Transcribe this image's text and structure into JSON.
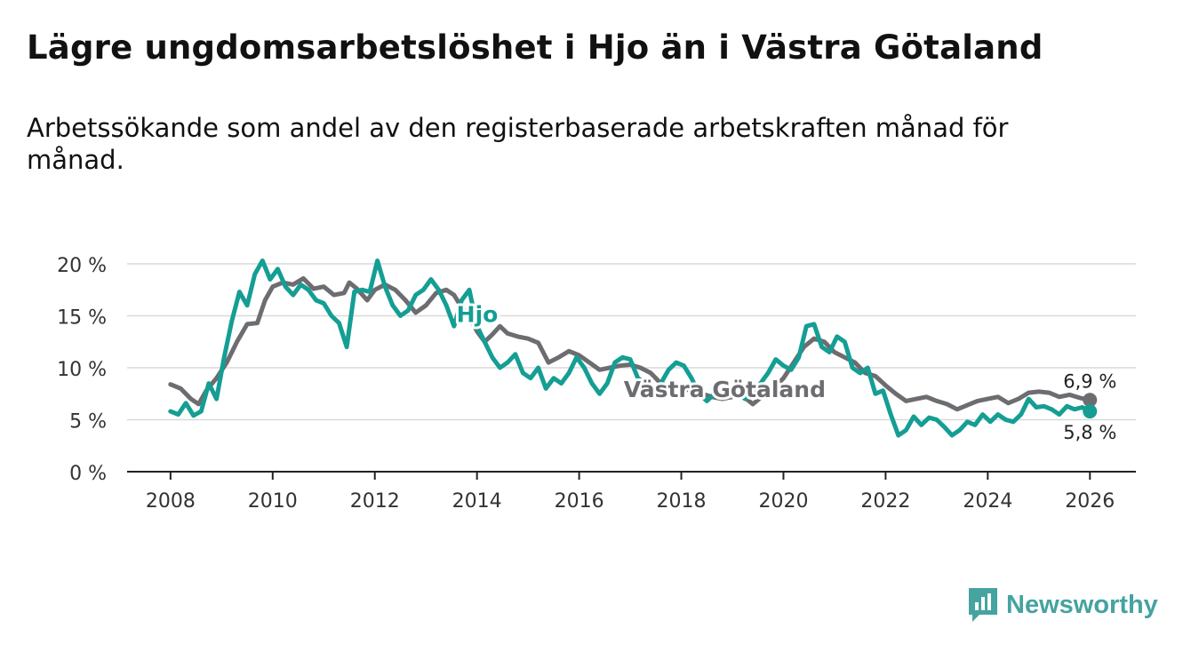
{
  "title": "Lägre ungdomsarbetslöshet i Hjo än i Västra Götaland",
  "subtitle": "Arbetssökande som andel av den registerbaserade arbetskraften månad för månad.",
  "brand": {
    "name": "Newsworthy",
    "color": "#45a3a0"
  },
  "chart_data": {
    "type": "line",
    "x_unit": "year",
    "ylim": [
      0,
      20
    ],
    "y_ticks": [
      0,
      5,
      10,
      15,
      20
    ],
    "y_tick_labels": [
      "0 %",
      "5 %",
      "10 %",
      "15 %",
      "20 %"
    ],
    "x_ticks": [
      2008,
      2010,
      2012,
      2014,
      2016,
      2018,
      2020,
      2022,
      2024,
      2026
    ],
    "x_tick_labels": [
      "2008",
      "2010",
      "2012",
      "2014",
      "2016",
      "2018",
      "2020",
      "2022",
      "2024",
      "2026"
    ],
    "xlim": [
      2007.15,
      2026.9
    ],
    "grid": true,
    "series": [
      {
        "name": "Västra Götaland",
        "label": "Västra Götaland",
        "color": "#6d6c70",
        "end_label": "6,9 %",
        "points": [
          [
            2008.0,
            8.4
          ],
          [
            2008.2,
            8.0
          ],
          [
            2008.4,
            7.0
          ],
          [
            2008.55,
            6.5
          ],
          [
            2008.7,
            7.8
          ],
          [
            2008.9,
            9.0
          ],
          [
            2009.1,
            10.5
          ],
          [
            2009.3,
            12.5
          ],
          [
            2009.5,
            14.2
          ],
          [
            2009.7,
            14.3
          ],
          [
            2009.85,
            16.5
          ],
          [
            2010.0,
            17.8
          ],
          [
            2010.2,
            18.2
          ],
          [
            2010.4,
            18.0
          ],
          [
            2010.6,
            18.6
          ],
          [
            2010.8,
            17.6
          ],
          [
            2011.0,
            17.8
          ],
          [
            2011.2,
            17.0
          ],
          [
            2011.4,
            17.2
          ],
          [
            2011.5,
            18.2
          ],
          [
            2011.65,
            17.6
          ],
          [
            2011.85,
            16.5
          ],
          [
            2012.0,
            17.5
          ],
          [
            2012.2,
            18.0
          ],
          [
            2012.4,
            17.5
          ],
          [
            2012.6,
            16.5
          ],
          [
            2012.8,
            15.3
          ],
          [
            2013.0,
            16.0
          ],
          [
            2013.2,
            17.2
          ],
          [
            2013.4,
            17.5
          ],
          [
            2013.55,
            17.0
          ],
          [
            2013.7,
            15.8
          ],
          [
            2013.85,
            15.0
          ],
          [
            2014.0,
            13.5
          ],
          [
            2014.15,
            12.5
          ],
          [
            2014.3,
            13.2
          ],
          [
            2014.45,
            14.0
          ],
          [
            2014.6,
            13.3
          ],
          [
            2014.8,
            13.0
          ],
          [
            2015.0,
            12.8
          ],
          [
            2015.2,
            12.4
          ],
          [
            2015.4,
            10.5
          ],
          [
            2015.6,
            11.0
          ],
          [
            2015.8,
            11.6
          ],
          [
            2016.0,
            11.2
          ],
          [
            2016.2,
            10.5
          ],
          [
            2016.4,
            9.8
          ],
          [
            2016.6,
            10.0
          ],
          [
            2016.8,
            10.2
          ],
          [
            2017.0,
            10.3
          ],
          [
            2017.2,
            10.0
          ],
          [
            2017.4,
            9.5
          ],
          [
            2017.6,
            8.5
          ],
          [
            2017.8,
            8.2
          ],
          [
            2018.0,
            8.0
          ],
          [
            2018.2,
            7.8
          ],
          [
            2018.4,
            7.5
          ],
          [
            2018.6,
            7.2
          ],
          [
            2018.8,
            7.0
          ],
          [
            2019.0,
            7.2
          ],
          [
            2019.2,
            7.3
          ],
          [
            2019.4,
            6.5
          ],
          [
            2019.6,
            7.3
          ],
          [
            2019.8,
            8.0
          ],
          [
            2020.0,
            9.0
          ],
          [
            2020.2,
            10.5
          ],
          [
            2020.4,
            12.0
          ],
          [
            2020.6,
            12.8
          ],
          [
            2020.8,
            12.5
          ],
          [
            2021.0,
            11.5
          ],
          [
            2021.2,
            11.0
          ],
          [
            2021.4,
            10.5
          ],
          [
            2021.6,
            9.5
          ],
          [
            2021.8,
            9.2
          ],
          [
            2022.0,
            8.3
          ],
          [
            2022.2,
            7.5
          ],
          [
            2022.4,
            6.8
          ],
          [
            2022.6,
            7.0
          ],
          [
            2022.8,
            7.2
          ],
          [
            2023.0,
            6.8
          ],
          [
            2023.2,
            6.5
          ],
          [
            2023.4,
            6.0
          ],
          [
            2023.6,
            6.4
          ],
          [
            2023.8,
            6.8
          ],
          [
            2024.0,
            7.0
          ],
          [
            2024.2,
            7.2
          ],
          [
            2024.4,
            6.6
          ],
          [
            2024.6,
            7.0
          ],
          [
            2024.8,
            7.6
          ],
          [
            2025.0,
            7.7
          ],
          [
            2025.2,
            7.6
          ],
          [
            2025.4,
            7.2
          ],
          [
            2025.6,
            7.4
          ],
          [
            2025.8,
            7.1
          ],
          [
            2026.0,
            6.9
          ]
        ]
      },
      {
        "name": "Hjo",
        "label": "Hjo",
        "color": "#149e94",
        "end_label": "5,8 %",
        "points": [
          [
            2008.0,
            5.8
          ],
          [
            2008.15,
            5.5
          ],
          [
            2008.3,
            6.6
          ],
          [
            2008.45,
            5.4
          ],
          [
            2008.6,
            5.8
          ],
          [
            2008.75,
            8.5
          ],
          [
            2008.9,
            7.0
          ],
          [
            2009.05,
            11.0
          ],
          [
            2009.2,
            14.5
          ],
          [
            2009.35,
            17.3
          ],
          [
            2009.5,
            16.0
          ],
          [
            2009.65,
            19.0
          ],
          [
            2009.8,
            20.3
          ],
          [
            2009.95,
            18.5
          ],
          [
            2010.1,
            19.5
          ],
          [
            2010.25,
            17.8
          ],
          [
            2010.4,
            17.0
          ],
          [
            2010.55,
            18.0
          ],
          [
            2010.7,
            17.5
          ],
          [
            2010.85,
            16.5
          ],
          [
            2011.0,
            16.2
          ],
          [
            2011.15,
            15.0
          ],
          [
            2011.3,
            14.3
          ],
          [
            2011.45,
            12.0
          ],
          [
            2011.6,
            17.3
          ],
          [
            2011.75,
            17.5
          ],
          [
            2011.9,
            17.3
          ],
          [
            2012.05,
            20.3
          ],
          [
            2012.2,
            17.8
          ],
          [
            2012.35,
            16.0
          ],
          [
            2012.5,
            15.0
          ],
          [
            2012.65,
            15.5
          ],
          [
            2012.8,
            17.0
          ],
          [
            2012.95,
            17.5
          ],
          [
            2013.1,
            18.5
          ],
          [
            2013.25,
            17.5
          ],
          [
            2013.4,
            16.0
          ],
          [
            2013.55,
            14.0
          ],
          [
            2013.7,
            16.5
          ],
          [
            2013.85,
            17.5
          ],
          [
            2014.0,
            14.0
          ],
          [
            2014.15,
            12.5
          ],
          [
            2014.3,
            11.0
          ],
          [
            2014.45,
            10.0
          ],
          [
            2014.6,
            10.5
          ],
          [
            2014.75,
            11.3
          ],
          [
            2014.9,
            9.5
          ],
          [
            2015.05,
            9.0
          ],
          [
            2015.2,
            10.0
          ],
          [
            2015.35,
            8.0
          ],
          [
            2015.5,
            9.0
          ],
          [
            2015.65,
            8.5
          ],
          [
            2015.8,
            9.5
          ],
          [
            2015.95,
            11.0
          ],
          [
            2016.1,
            10.0
          ],
          [
            2016.25,
            8.5
          ],
          [
            2016.4,
            7.5
          ],
          [
            2016.55,
            8.5
          ],
          [
            2016.7,
            10.5
          ],
          [
            2016.85,
            11.0
          ],
          [
            2017.0,
            10.8
          ],
          [
            2017.15,
            9.0
          ],
          [
            2017.3,
            8.5
          ],
          [
            2017.45,
            7.2
          ],
          [
            2017.6,
            8.5
          ],
          [
            2017.75,
            9.8
          ],
          [
            2017.9,
            10.5
          ],
          [
            2018.05,
            10.2
          ],
          [
            2018.2,
            9.0
          ],
          [
            2018.35,
            7.5
          ],
          [
            2018.5,
            6.8
          ],
          [
            2018.65,
            7.5
          ],
          [
            2018.8,
            8.5
          ],
          [
            2018.95,
            8.0
          ],
          [
            2019.1,
            7.5
          ],
          [
            2019.25,
            7.0
          ],
          [
            2019.4,
            7.8
          ],
          [
            2019.55,
            8.5
          ],
          [
            2019.7,
            9.5
          ],
          [
            2019.85,
            10.8
          ],
          [
            2020.0,
            10.2
          ],
          [
            2020.15,
            9.8
          ],
          [
            2020.3,
            11.0
          ],
          [
            2020.45,
            14.0
          ],
          [
            2020.6,
            14.2
          ],
          [
            2020.75,
            12.0
          ],
          [
            2020.9,
            11.5
          ],
          [
            2021.05,
            13.0
          ],
          [
            2021.2,
            12.5
          ],
          [
            2021.35,
            10.0
          ],
          [
            2021.5,
            9.5
          ],
          [
            2021.65,
            10.0
          ],
          [
            2021.8,
            7.5
          ],
          [
            2021.95,
            7.8
          ],
          [
            2022.1,
            5.5
          ],
          [
            2022.25,
            3.5
          ],
          [
            2022.4,
            4.0
          ],
          [
            2022.55,
            5.3
          ],
          [
            2022.7,
            4.5
          ],
          [
            2022.85,
            5.2
          ],
          [
            2023.0,
            5.0
          ],
          [
            2023.15,
            4.3
          ],
          [
            2023.3,
            3.5
          ],
          [
            2023.45,
            4.0
          ],
          [
            2023.6,
            4.8
          ],
          [
            2023.75,
            4.5
          ],
          [
            2023.9,
            5.5
          ],
          [
            2024.05,
            4.8
          ],
          [
            2024.2,
            5.5
          ],
          [
            2024.35,
            5.0
          ],
          [
            2024.5,
            4.8
          ],
          [
            2024.65,
            5.5
          ],
          [
            2024.8,
            7.0
          ],
          [
            2024.95,
            6.2
          ],
          [
            2025.1,
            6.3
          ],
          [
            2025.25,
            6.0
          ],
          [
            2025.4,
            5.5
          ],
          [
            2025.55,
            6.3
          ],
          [
            2025.7,
            6.0
          ],
          [
            2025.85,
            6.2
          ],
          [
            2026.0,
            5.8
          ]
        ]
      }
    ]
  }
}
